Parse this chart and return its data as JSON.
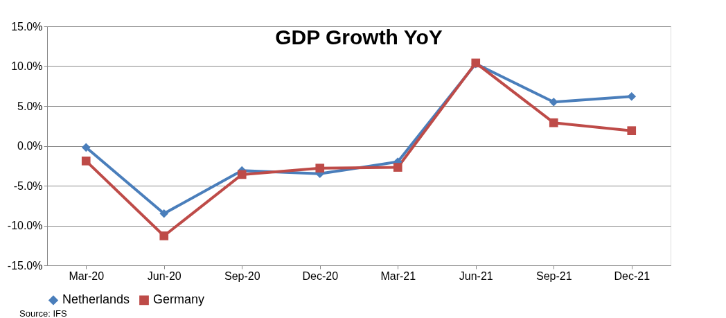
{
  "chart_data": {
    "type": "line",
    "title": "GDP Growth YoY",
    "categories": [
      "Mar-20",
      "Jun-20",
      "Sep-20",
      "Dec-20",
      "Mar-21",
      "Jun-21",
      "Sep-21",
      "Dec-21"
    ],
    "series": [
      {
        "name": "Netherlands",
        "color": "#4a7ebb",
        "marker": "diamond",
        "values": [
          -0.2,
          -8.5,
          -3.1,
          -3.5,
          -2.0,
          10.3,
          5.5,
          6.2
        ]
      },
      {
        "name": "Germany",
        "color": "#be4b48",
        "marker": "square",
        "values": [
          -1.9,
          -11.3,
          -3.6,
          -2.8,
          -2.7,
          10.4,
          2.9,
          1.9
        ]
      }
    ],
    "ylim": [
      -15,
      15
    ],
    "yticks": [
      {
        "value": -15,
        "label": "-15.0%"
      },
      {
        "value": -10,
        "label": "-10.0%"
      },
      {
        "value": -5,
        "label": "-5.0%"
      },
      {
        "value": 0,
        "label": "0.0%"
      },
      {
        "value": 5,
        "label": "5.0%"
      },
      {
        "value": 10,
        "label": "10.0%"
      },
      {
        "value": 15,
        "label": "15.0%"
      }
    ],
    "grid": "y",
    "legend": "bottom",
    "line_style": "solid",
    "annotations": [
      "Source: IFS"
    ]
  }
}
